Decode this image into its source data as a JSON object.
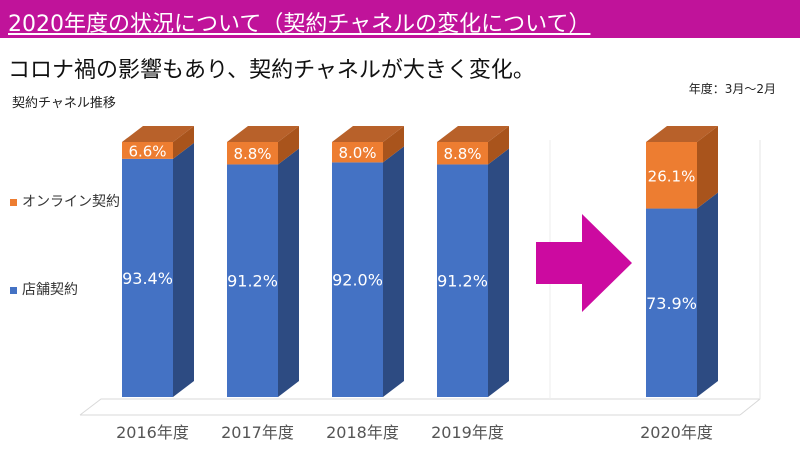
{
  "header": {
    "title": "2020年度の状況について（契約チャネルの変化について）",
    "subtitle": "コロナ禍の影響もあり、契約チャネルが大きく変化。"
  },
  "period_note": "年度：3月～2月",
  "colors": {
    "title_bar": "#c0139a",
    "arrow": "#cc0aa0",
    "online": "#ed7d31",
    "store": "#4472c4"
  },
  "chart_data": {
    "type": "bar",
    "stacked": true,
    "three_d": true,
    "title": "契約チャネル推移",
    "categories": [
      "2016年度",
      "2017年度",
      "2018年度",
      "2019年度",
      "2020年度"
    ],
    "series": [
      {
        "name": "店舗契約",
        "color": "#4472c4",
        "values": [
          93.4,
          91.2,
          92.0,
          91.2,
          73.9
        ],
        "labels": [
          "93.4%",
          "91.2%",
          "92.0%",
          "91.2%",
          "73.9%"
        ]
      },
      {
        "name": "オンライン契約",
        "color": "#ed7d31",
        "values": [
          6.6,
          8.8,
          8.0,
          8.8,
          26.1
        ],
        "labels": [
          "6.6%",
          "8.8%",
          "8.0%",
          "8.8%",
          "26.1%"
        ]
      }
    ],
    "ylim": [
      0,
      100
    ],
    "legend": "left",
    "grid": false,
    "annotation": "arrow from 2019年度 to 2020年度"
  }
}
